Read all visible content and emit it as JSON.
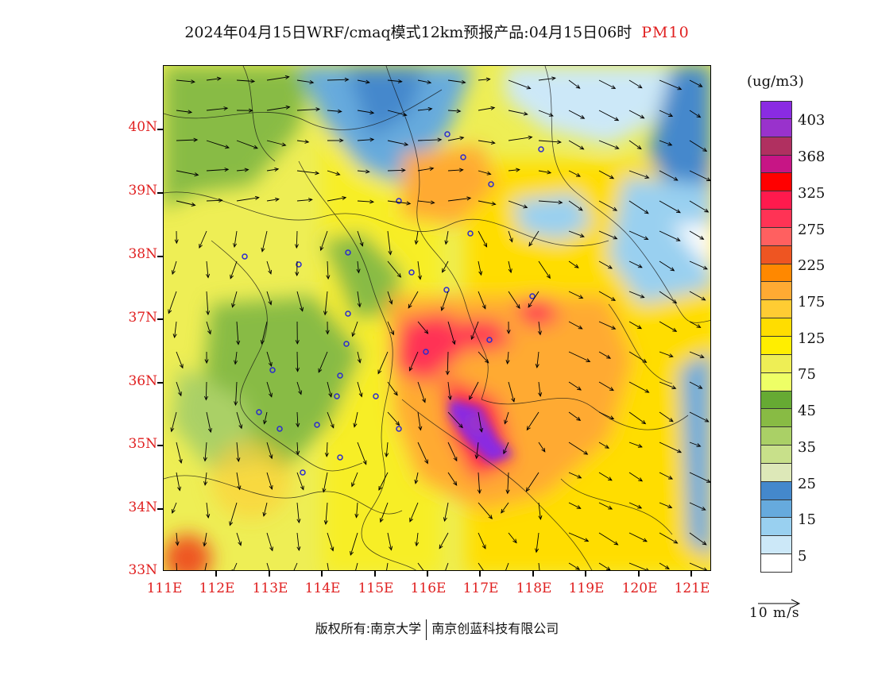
{
  "title": {
    "main": "2024年04月15日WRF/cmaq模式12km预报产品:04月15日06时",
    "variable": "PM10"
  },
  "axes": {
    "latitudes": [
      "40N",
      "39N",
      "38N",
      "37N",
      "36N",
      "35N",
      "34N",
      "33N"
    ],
    "longitudes": [
      "111E",
      "112E",
      "113E",
      "114E",
      "115E",
      "116E",
      "117E",
      "118E",
      "119E",
      "120E",
      "121E"
    ]
  },
  "legend": {
    "unit": "(ug/m3)",
    "labels": [
      "403",
      "368",
      "325",
      "275",
      "225",
      "175",
      "125",
      "75",
      "45",
      "35",
      "25",
      "15",
      "5"
    ],
    "colors": [
      "#8a2be2",
      "#9932cc",
      "#b03060",
      "#c71585",
      "#ff0000",
      "#ff1a4d",
      "#ff3355",
      "#ff6060",
      "#ee5522",
      "#ff8800",
      "#ffaa33",
      "#ffcc33",
      "#ffdd00",
      "#ffee00",
      "#eeee55",
      "#eeff66",
      "#66aa33",
      "#88bb44",
      "#aad066",
      "#c8e08a",
      "#dde8b8",
      "#4488cc",
      "#66aadd",
      "#99d0f0",
      "#cce8f8",
      "#ffffff"
    ]
  },
  "wind_reference": {
    "label": "10 m/s"
  },
  "footer": {
    "left": "版权所有:南京大学",
    "right": "南京创蓝科技有限公司"
  }
}
